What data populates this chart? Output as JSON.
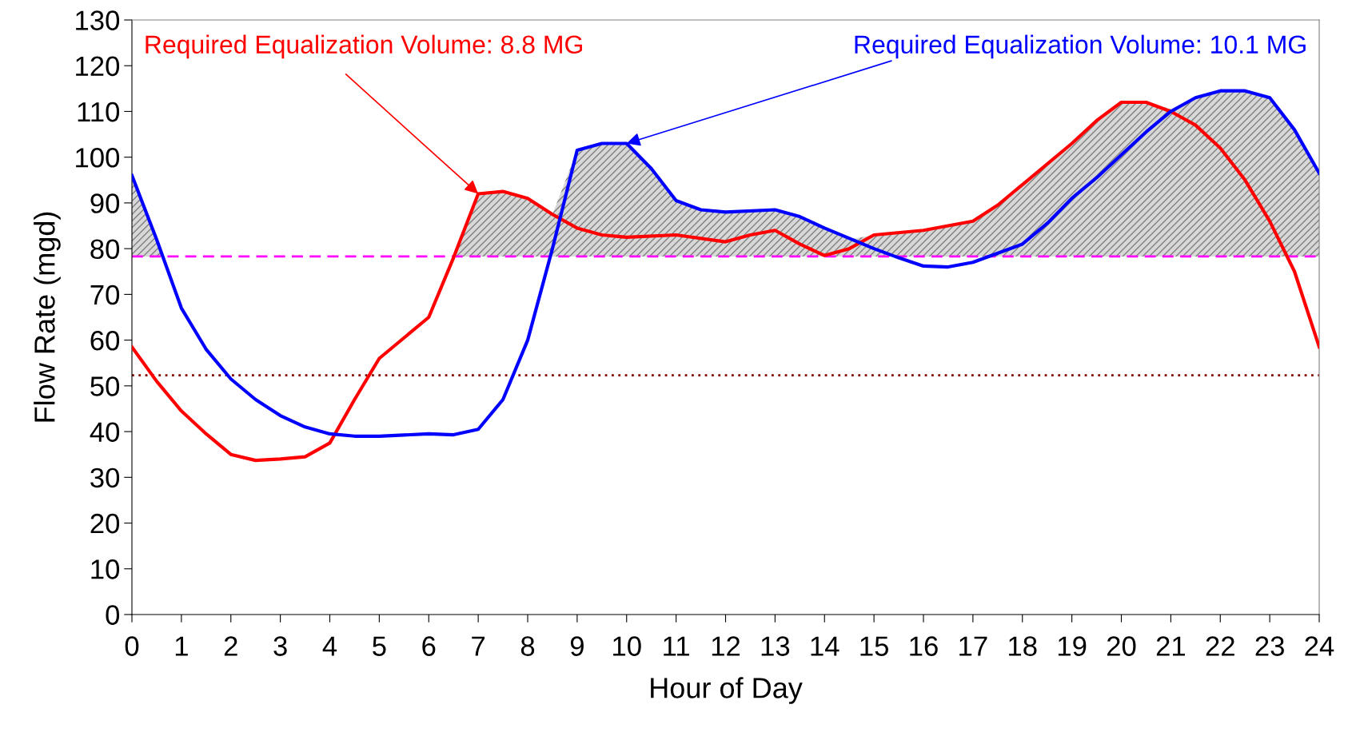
{
  "chart_data": {
    "type": "line",
    "xlabel": "Hour of Day",
    "ylabel": "Flow Rate (mgd)",
    "xlim": [
      0,
      24
    ],
    "ylim": [
      0,
      130
    ],
    "xticks": [
      0,
      1,
      2,
      3,
      4,
      5,
      6,
      7,
      8,
      9,
      10,
      11,
      12,
      13,
      14,
      15,
      16,
      17,
      18,
      19,
      20,
      21,
      22,
      23,
      24
    ],
    "yticks": [
      0,
      10,
      20,
      30,
      40,
      50,
      60,
      70,
      80,
      90,
      100,
      110,
      120,
      130
    ],
    "grid": false,
    "legend": false,
    "marker": "none",
    "line_style": "solid",
    "series": [
      {
        "type": "area",
        "color": "#808080",
        "x": [
          0,
          0.5,
          0.6,
          6.48,
          7,
          7.5,
          8,
          8.5,
          9,
          9.5,
          10,
          10.5,
          11,
          11.5,
          12,
          12.5,
          13,
          13.5,
          14,
          14.5,
          15,
          15.5,
          16,
          16.5,
          17,
          17.5,
          18,
          18.5,
          19,
          19.5,
          20,
          20.5,
          21,
          21.5,
          22,
          22.5,
          23,
          23.5,
          24
        ],
        "values": [
          96,
          82,
          78.3,
          78.3,
          92,
          92.5,
          91,
          87.5,
          101.5,
          103,
          103,
          97.5,
          90.5,
          88.5,
          88,
          88,
          88.5,
          87,
          84.5,
          82,
          83,
          83.5,
          84,
          85,
          86,
          89.5,
          94,
          98.5,
          103,
          108,
          112,
          112,
          110.5,
          113,
          114.5,
          114.5,
          113,
          106,
          96.5
        ]
      },
      {
        "color": "#ff0000",
        "x": [
          0,
          0.5,
          1,
          1.5,
          2,
          2.5,
          3,
          3.5,
          4,
          4.5,
          5,
          5.5,
          6,
          6.5,
          7,
          7.5,
          8,
          8.5,
          9,
          9.5,
          10,
          11,
          12,
          12.5,
          13,
          13.5,
          14,
          14.5,
          15,
          16,
          17,
          17.5,
          18,
          19,
          19.5,
          20,
          20.5,
          21,
          21.5,
          22,
          22.5,
          23,
          23.5,
          24
        ],
        "values": [
          58.5,
          51,
          44.5,
          39.5,
          35,
          33.7,
          34,
          34.5,
          37.5,
          47,
          56,
          60.5,
          65,
          78,
          92,
          92.5,
          91,
          87.5,
          84.5,
          83,
          82.5,
          83,
          81.5,
          83,
          84,
          81,
          78.5,
          80,
          83,
          84,
          86,
          89.5,
          94,
          103,
          108,
          112,
          112,
          110,
          107,
          102,
          95,
          86,
          75,
          58.5
        ]
      },
      {
        "color": "#0000ff",
        "x": [
          0,
          0.5,
          1,
          1.5,
          2,
          2.5,
          3,
          3.5,
          4,
          4.5,
          5,
          6,
          6.5,
          7,
          7.5,
          8,
          8.5,
          9,
          9.5,
          10,
          10.5,
          11,
          11.5,
          12,
          13,
          13.5,
          14,
          15,
          15.5,
          16,
          16.5,
          17,
          18,
          18.5,
          19,
          19.5,
          20,
          20.5,
          21,
          21.5,
          22,
          22.5,
          23,
          23.5,
          24
        ],
        "values": [
          96,
          82,
          67,
          58,
          51.5,
          47,
          43.5,
          41,
          39.5,
          39,
          39,
          39.5,
          39.3,
          40.5,
          47,
          60,
          80,
          101.5,
          103,
          103,
          97.5,
          90.5,
          88.5,
          88,
          88.5,
          87,
          84.5,
          80,
          78,
          76.2,
          76,
          77,
          81,
          85.5,
          91,
          95.5,
          100.5,
          105.5,
          110,
          113,
          114.5,
          114.5,
          113,
          106,
          96.5
        ]
      }
    ],
    "ref_lines": [
      {
        "axis": "y",
        "value": 78.3,
        "color": "#ff00ff",
        "line_style": "dashed"
      },
      {
        "axis": "y",
        "value": 52.3,
        "color": "#800000",
        "line_style": "dotted"
      }
    ],
    "annotations": [
      {
        "text": "Required Equalization Volume: 8.8 MG",
        "x": 7,
        "y": 92
      },
      {
        "text": "Required Equalization Volume: 10.1 MG",
        "x": 10,
        "y": 103
      }
    ]
  }
}
